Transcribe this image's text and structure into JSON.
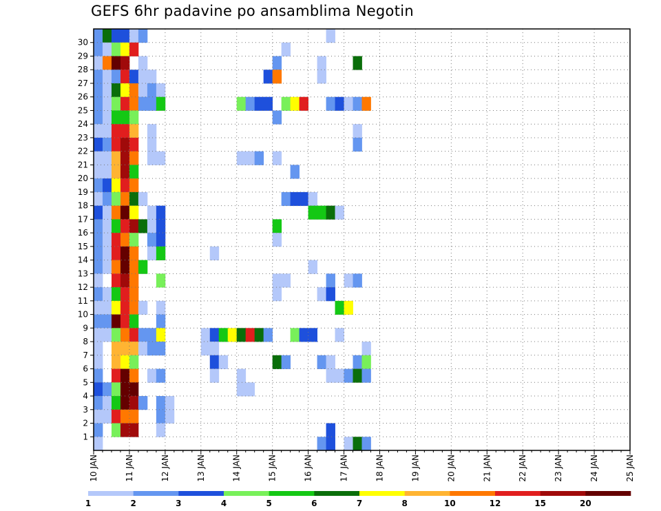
{
  "chart_data": {
    "type": "heatmap",
    "title": "GEFS 6hr padavine po ansamblima Negotin",
    "y_categories": [
      "1",
      "2",
      "3",
      "4",
      "5",
      "6",
      "7",
      "8",
      "9",
      "10",
      "11",
      "12",
      "13",
      "14",
      "15",
      "16",
      "17",
      "18",
      "19",
      "20",
      "21",
      "22",
      "23",
      "24",
      "25",
      "26",
      "27",
      "28",
      "29",
      "30"
    ],
    "x_tick_labels": [
      "10 JAN",
      "11 JAN",
      "12 JAN",
      "13 JAN",
      "14 JAN",
      "15 JAN",
      "16 JAN",
      "17 JAN",
      "18 JAN",
      "19 JAN",
      "20 JAN",
      "21 JAN",
      "22 JAN",
      "23 JAN",
      "24 JAN",
      "25 JAN"
    ],
    "x_range": [
      "10 JAN 00Z",
      "25 JAN 00Z"
    ],
    "x_step": "6hr",
    "grid": true,
    "colorbar": {
      "labels": [
        "1",
        "2",
        "3",
        "4",
        "5",
        "6",
        "7",
        "8",
        "10",
        "12",
        "15",
        "20"
      ],
      "colors": [
        "#b4c8fa",
        "#6496f0",
        "#1e50dc",
        "#78f05a",
        "#14c814",
        "#0a6e0a",
        "#ffff00",
        "#ffb432",
        "#ff7800",
        "#e11e1e",
        "#a00a0a",
        "#640000"
      ]
    },
    "series_note": "cells: [member, step index from 10 JAN 00Z, color index]",
    "cells": [
      [
        30,
        0,
        1
      ],
      [
        30,
        1,
        5
      ],
      [
        30,
        2,
        2
      ],
      [
        30,
        3,
        2
      ],
      [
        30,
        4,
        0
      ],
      [
        30,
        5,
        1
      ],
      [
        30,
        26,
        0
      ],
      [
        29,
        0,
        1
      ],
      [
        29,
        1,
        0
      ],
      [
        29,
        2,
        3
      ],
      [
        29,
        3,
        6
      ],
      [
        29,
        4,
        9
      ],
      [
        29,
        21,
        0
      ],
      [
        28,
        0,
        0
      ],
      [
        28,
        1,
        8
      ],
      [
        28,
        2,
        11
      ],
      [
        28,
        3,
        10
      ],
      [
        28,
        5,
        0
      ],
      [
        28,
        20,
        1
      ],
      [
        28,
        25,
        0
      ],
      [
        28,
        29,
        5
      ],
      [
        27,
        0,
        1
      ],
      [
        27,
        1,
        0
      ],
      [
        27,
        2,
        1
      ],
      [
        27,
        3,
        9
      ],
      [
        27,
        4,
        2
      ],
      [
        27,
        5,
        0
      ],
      [
        27,
        6,
        0
      ],
      [
        27,
        19,
        2
      ],
      [
        27,
        20,
        8
      ],
      [
        27,
        25,
        0
      ],
      [
        26,
        0,
        1
      ],
      [
        26,
        1,
        0
      ],
      [
        26,
        2,
        5
      ],
      [
        26,
        3,
        6
      ],
      [
        26,
        4,
        8
      ],
      [
        26,
        5,
        0
      ],
      [
        26,
        6,
        1
      ],
      [
        26,
        7,
        0
      ],
      [
        25,
        0,
        1
      ],
      [
        25,
        1,
        0
      ],
      [
        25,
        2,
        3
      ],
      [
        25,
        3,
        9
      ],
      [
        25,
        4,
        8
      ],
      [
        25,
        5,
        1
      ],
      [
        25,
        6,
        1
      ],
      [
        25,
        7,
        4
      ],
      [
        25,
        16,
        3
      ],
      [
        25,
        17,
        1
      ],
      [
        25,
        18,
        2
      ],
      [
        25,
        19,
        2
      ],
      [
        25,
        21,
        3
      ],
      [
        25,
        22,
        6
      ],
      [
        25,
        23,
        9
      ],
      [
        25,
        26,
        1
      ],
      [
        25,
        27,
        2
      ],
      [
        25,
        28,
        0
      ],
      [
        25,
        29,
        1
      ],
      [
        25,
        30,
        8
      ],
      [
        24,
        0,
        1
      ],
      [
        24,
        1,
        0
      ],
      [
        24,
        2,
        4
      ],
      [
        24,
        3,
        4
      ],
      [
        24,
        4,
        3
      ],
      [
        24,
        20,
        1
      ],
      [
        23,
        0,
        0
      ],
      [
        23,
        1,
        0
      ],
      [
        23,
        2,
        9
      ],
      [
        23,
        3,
        9
      ],
      [
        23,
        4,
        7
      ],
      [
        23,
        6,
        0
      ],
      [
        23,
        29,
        0
      ],
      [
        22,
        0,
        2
      ],
      [
        22,
        1,
        1
      ],
      [
        22,
        2,
        9
      ],
      [
        22,
        3,
        10
      ],
      [
        22,
        4,
        9
      ],
      [
        22,
        6,
        0
      ],
      [
        22,
        29,
        1
      ],
      [
        21,
        0,
        0
      ],
      [
        21,
        1,
        0
      ],
      [
        21,
        2,
        7
      ],
      [
        21,
        3,
        10
      ],
      [
        21,
        4,
        8
      ],
      [
        21,
        6,
        0
      ],
      [
        21,
        7,
        0
      ],
      [
        21,
        16,
        0
      ],
      [
        21,
        17,
        0
      ],
      [
        21,
        18,
        1
      ],
      [
        21,
        20,
        0
      ],
      [
        20,
        0,
        0
      ],
      [
        20,
        1,
        0
      ],
      [
        20,
        2,
        7
      ],
      [
        20,
        3,
        10
      ],
      [
        20,
        4,
        4
      ],
      [
        20,
        22,
        1
      ],
      [
        19,
        0,
        1
      ],
      [
        19,
        1,
        2
      ],
      [
        19,
        2,
        6
      ],
      [
        19,
        3,
        9
      ],
      [
        19,
        4,
        8
      ],
      [
        18,
        0,
        0
      ],
      [
        18,
        1,
        1
      ],
      [
        18,
        2,
        3
      ],
      [
        18,
        3,
        8
      ],
      [
        18,
        4,
        5
      ],
      [
        18,
        5,
        0
      ],
      [
        18,
        21,
        1
      ],
      [
        18,
        22,
        2
      ],
      [
        18,
        23,
        2
      ],
      [
        18,
        24,
        0
      ],
      [
        17,
        0,
        2
      ],
      [
        17,
        1,
        0
      ],
      [
        17,
        2,
        8
      ],
      [
        17,
        3,
        11
      ],
      [
        17,
        4,
        6
      ],
      [
        17,
        6,
        0
      ],
      [
        17,
        7,
        2
      ],
      [
        17,
        24,
        4
      ],
      [
        17,
        25,
        4
      ],
      [
        17,
        26,
        5
      ],
      [
        17,
        27,
        0
      ],
      [
        16,
        0,
        1
      ],
      [
        16,
        1,
        0
      ],
      [
        16,
        2,
        4
      ],
      [
        16,
        3,
        9
      ],
      [
        16,
        4,
        10
      ],
      [
        16,
        5,
        5
      ],
      [
        16,
        6,
        0
      ],
      [
        16,
        7,
        2
      ],
      [
        16,
        20,
        4
      ],
      [
        15,
        0,
        1
      ],
      [
        15,
        1,
        0
      ],
      [
        15,
        2,
        9
      ],
      [
        15,
        3,
        8
      ],
      [
        15,
        4,
        3
      ],
      [
        15,
        6,
        1
      ],
      [
        15,
        7,
        2
      ],
      [
        15,
        20,
        0
      ],
      [
        14,
        0,
        1
      ],
      [
        14,
        1,
        0
      ],
      [
        14,
        2,
        9
      ],
      [
        14,
        3,
        11
      ],
      [
        14,
        4,
        8
      ],
      [
        14,
        6,
        0
      ],
      [
        14,
        7,
        4
      ],
      [
        14,
        13,
        0
      ],
      [
        13,
        0,
        1
      ],
      [
        13,
        1,
        0
      ],
      [
        13,
        2,
        8
      ],
      [
        13,
        3,
        11
      ],
      [
        13,
        4,
        8
      ],
      [
        13,
        5,
        4
      ],
      [
        13,
        24,
        0
      ],
      [
        12,
        0,
        0
      ],
      [
        12,
        2,
        9
      ],
      [
        12,
        3,
        10
      ],
      [
        12,
        4,
        8
      ],
      [
        12,
        7,
        3
      ],
      [
        12,
        20,
        0
      ],
      [
        12,
        21,
        0
      ],
      [
        12,
        26,
        1
      ],
      [
        12,
        28,
        0
      ],
      [
        12,
        29,
        1
      ],
      [
        11,
        0,
        1
      ],
      [
        11,
        1,
        0
      ],
      [
        11,
        2,
        4
      ],
      [
        11,
        3,
        9
      ],
      [
        11,
        4,
        8
      ],
      [
        11,
        20,
        0
      ],
      [
        11,
        25,
        0
      ],
      [
        11,
        26,
        2
      ],
      [
        10,
        0,
        0
      ],
      [
        10,
        1,
        0
      ],
      [
        10,
        2,
        6
      ],
      [
        10,
        3,
        9
      ],
      [
        10,
        4,
        8
      ],
      [
        10,
        5,
        0
      ],
      [
        10,
        7,
        0
      ],
      [
        10,
        27,
        4
      ],
      [
        10,
        28,
        6
      ],
      [
        9,
        0,
        1
      ],
      [
        9,
        1,
        1
      ],
      [
        9,
        2,
        11
      ],
      [
        9,
        3,
        9
      ],
      [
        9,
        4,
        4
      ],
      [
        9,
        7,
        1
      ],
      [
        8,
        0,
        0
      ],
      [
        8,
        1,
        0
      ],
      [
        8,
        2,
        3
      ],
      [
        8,
        3,
        8
      ],
      [
        8,
        4,
        9
      ],
      [
        8,
        5,
        1
      ],
      [
        8,
        6,
        1
      ],
      [
        8,
        7,
        6
      ],
      [
        8,
        12,
        0
      ],
      [
        8,
        13,
        2
      ],
      [
        8,
        14,
        4
      ],
      [
        8,
        15,
        6
      ],
      [
        8,
        16,
        5
      ],
      [
        8,
        17,
        9
      ],
      [
        8,
        18,
        5
      ],
      [
        8,
        19,
        1
      ],
      [
        8,
        22,
        3
      ],
      [
        8,
        23,
        2
      ],
      [
        8,
        24,
        2
      ],
      [
        8,
        27,
        0
      ],
      [
        7,
        0,
        0
      ],
      [
        7,
        2,
        7
      ],
      [
        7,
        3,
        7
      ],
      [
        7,
        4,
        7
      ],
      [
        7,
        5,
        0
      ],
      [
        7,
        6,
        1
      ],
      [
        7,
        7,
        1
      ],
      [
        7,
        12,
        0
      ],
      [
        7,
        13,
        0
      ],
      [
        7,
        30,
        0
      ],
      [
        6,
        0,
        0
      ],
      [
        6,
        2,
        7
      ],
      [
        6,
        3,
        6
      ],
      [
        6,
        4,
        3
      ],
      [
        6,
        13,
        2
      ],
      [
        6,
        14,
        0
      ],
      [
        6,
        20,
        5
      ],
      [
        6,
        21,
        1
      ],
      [
        6,
        25,
        1
      ],
      [
        6,
        26,
        0
      ],
      [
        6,
        29,
        1
      ],
      [
        6,
        30,
        3
      ],
      [
        5,
        0,
        1
      ],
      [
        5,
        2,
        9
      ],
      [
        5,
        3,
        11
      ],
      [
        5,
        4,
        8
      ],
      [
        5,
        6,
        0
      ],
      [
        5,
        7,
        1
      ],
      [
        5,
        13,
        0
      ],
      [
        5,
        16,
        0
      ],
      [
        5,
        26,
        0
      ],
      [
        5,
        27,
        0
      ],
      [
        5,
        28,
        1
      ],
      [
        5,
        29,
        5
      ],
      [
        5,
        30,
        1
      ],
      [
        4,
        0,
        2
      ],
      [
        4,
        1,
        1
      ],
      [
        4,
        2,
        3
      ],
      [
        4,
        3,
        11
      ],
      [
        4,
        4,
        11
      ],
      [
        4,
        16,
        0
      ],
      [
        4,
        17,
        0
      ],
      [
        3,
        0,
        1
      ],
      [
        3,
        1,
        0
      ],
      [
        3,
        2,
        4
      ],
      [
        3,
        3,
        11
      ],
      [
        3,
        4,
        10
      ],
      [
        3,
        5,
        1
      ],
      [
        3,
        7,
        1
      ],
      [
        3,
        8,
        0
      ],
      [
        2,
        0,
        0
      ],
      [
        2,
        1,
        0
      ],
      [
        2,
        2,
        9
      ],
      [
        2,
        3,
        8
      ],
      [
        2,
        4,
        8
      ],
      [
        2,
        7,
        1
      ],
      [
        2,
        8,
        0
      ],
      [
        1,
        0,
        1
      ],
      [
        1,
        2,
        3
      ],
      [
        1,
        3,
        10
      ],
      [
        1,
        4,
        10
      ],
      [
        1,
        7,
        0
      ],
      [
        1,
        26,
        2
      ],
      [
        0,
        0,
        0
      ],
      [
        0,
        25,
        1
      ],
      [
        0,
        26,
        2
      ],
      [
        0,
        28,
        0
      ],
      [
        0,
        29,
        5
      ],
      [
        0,
        30,
        1
      ]
    ]
  }
}
